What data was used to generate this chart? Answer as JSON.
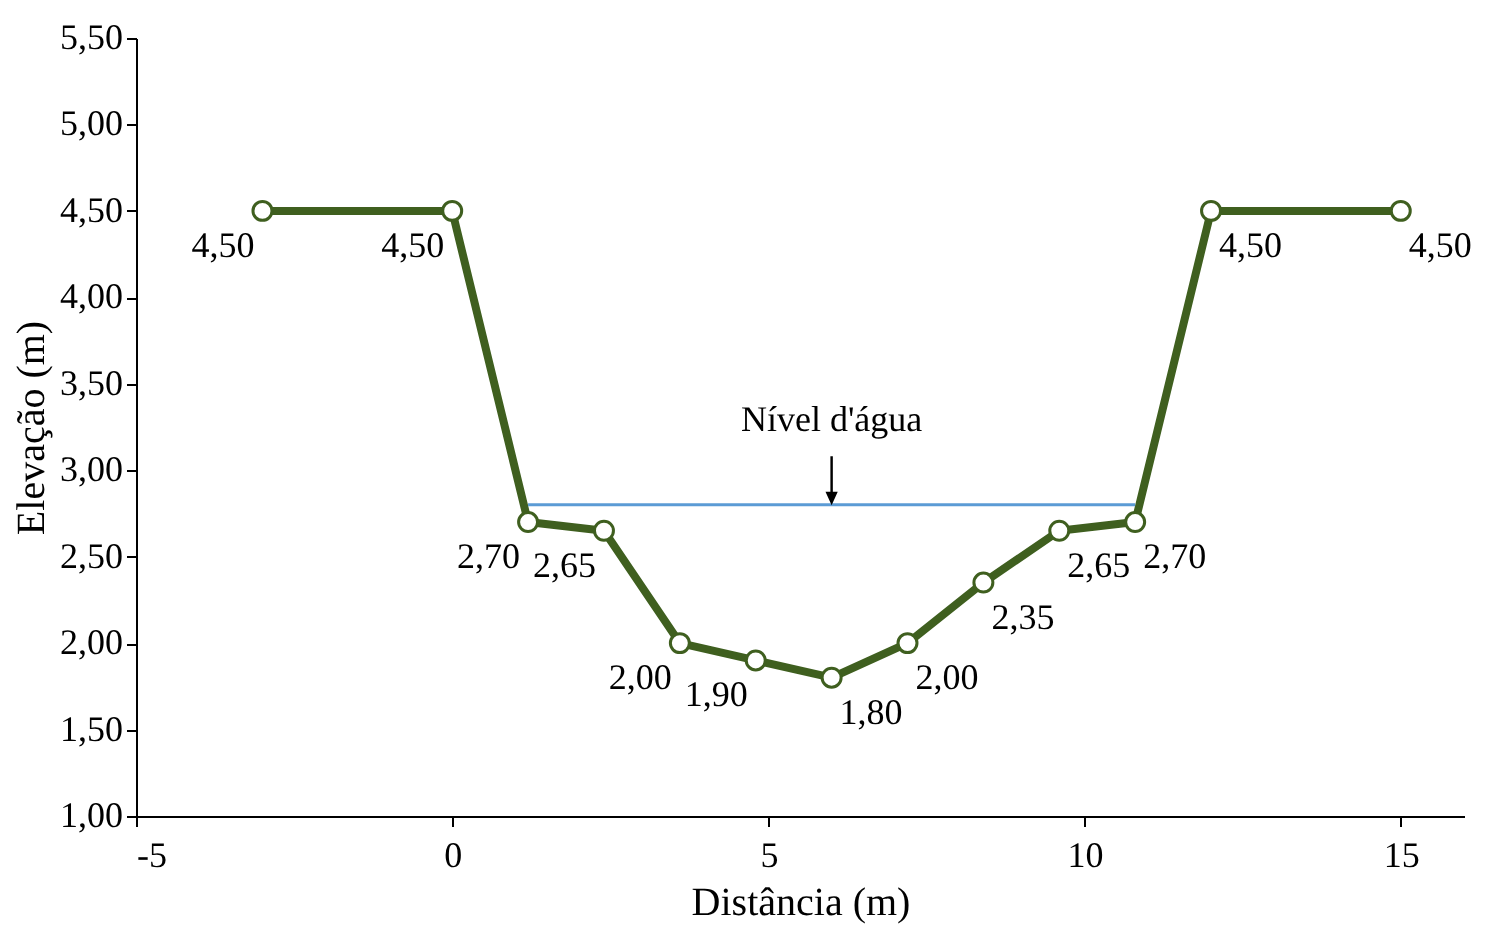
{
  "chart_data": {
    "type": "line",
    "xlabel": "Distância (m)",
    "ylabel": "Elevação (m)",
    "x": [
      -3,
      0,
      1.2,
      2.4,
      3.6,
      4.8,
      6,
      7.2,
      8.4,
      9.6,
      10.8,
      12,
      15
    ],
    "series": [
      {
        "color": "#3f5f1f",
        "values": [
          4.5,
          4.5,
          2.7,
          2.65,
          2.0,
          1.9,
          1.8,
          2.0,
          2.35,
          2.65,
          2.7,
          4.5,
          4.5
        ],
        "value_labels": [
          "4,50",
          "4,50",
          "2,70",
          "2,65",
          "2,00",
          "1,90",
          "1,80",
          "2,00",
          "2,35",
          "2,65",
          "2,70",
          "4,50",
          "4,50"
        ],
        "marker": "circle"
      },
      {
        "type": "line",
        "color": "#5b9bd5",
        "x": [
          1.2,
          10.8
        ],
        "values": [
          2.8,
          2.8
        ],
        "marker": "none"
      }
    ],
    "annotations": [
      {
        "text": "Nível d'água",
        "x": 6,
        "y": 2.8
      }
    ],
    "xlim": [
      -5,
      16
    ],
    "xticks": [
      -5,
      0,
      5,
      10,
      15
    ],
    "ylim": [
      1,
      5.5
    ],
    "yticks": [
      {
        "value": 1,
        "label": "1,00"
      },
      {
        "value": 1.5,
        "label": "1,50"
      },
      {
        "value": 2,
        "label": "2,00"
      },
      {
        "value": 2.5,
        "label": "2,50"
      },
      {
        "value": 3,
        "label": "3,00"
      },
      {
        "value": 3.5,
        "label": "3,50"
      },
      {
        "value": 4,
        "label": "4,00"
      },
      {
        "value": 4.5,
        "label": "4,50"
      },
      {
        "value": 5,
        "label": "5,00"
      },
      {
        "value": 5.5,
        "label": "5,50"
      }
    ],
    "grid": false
  }
}
